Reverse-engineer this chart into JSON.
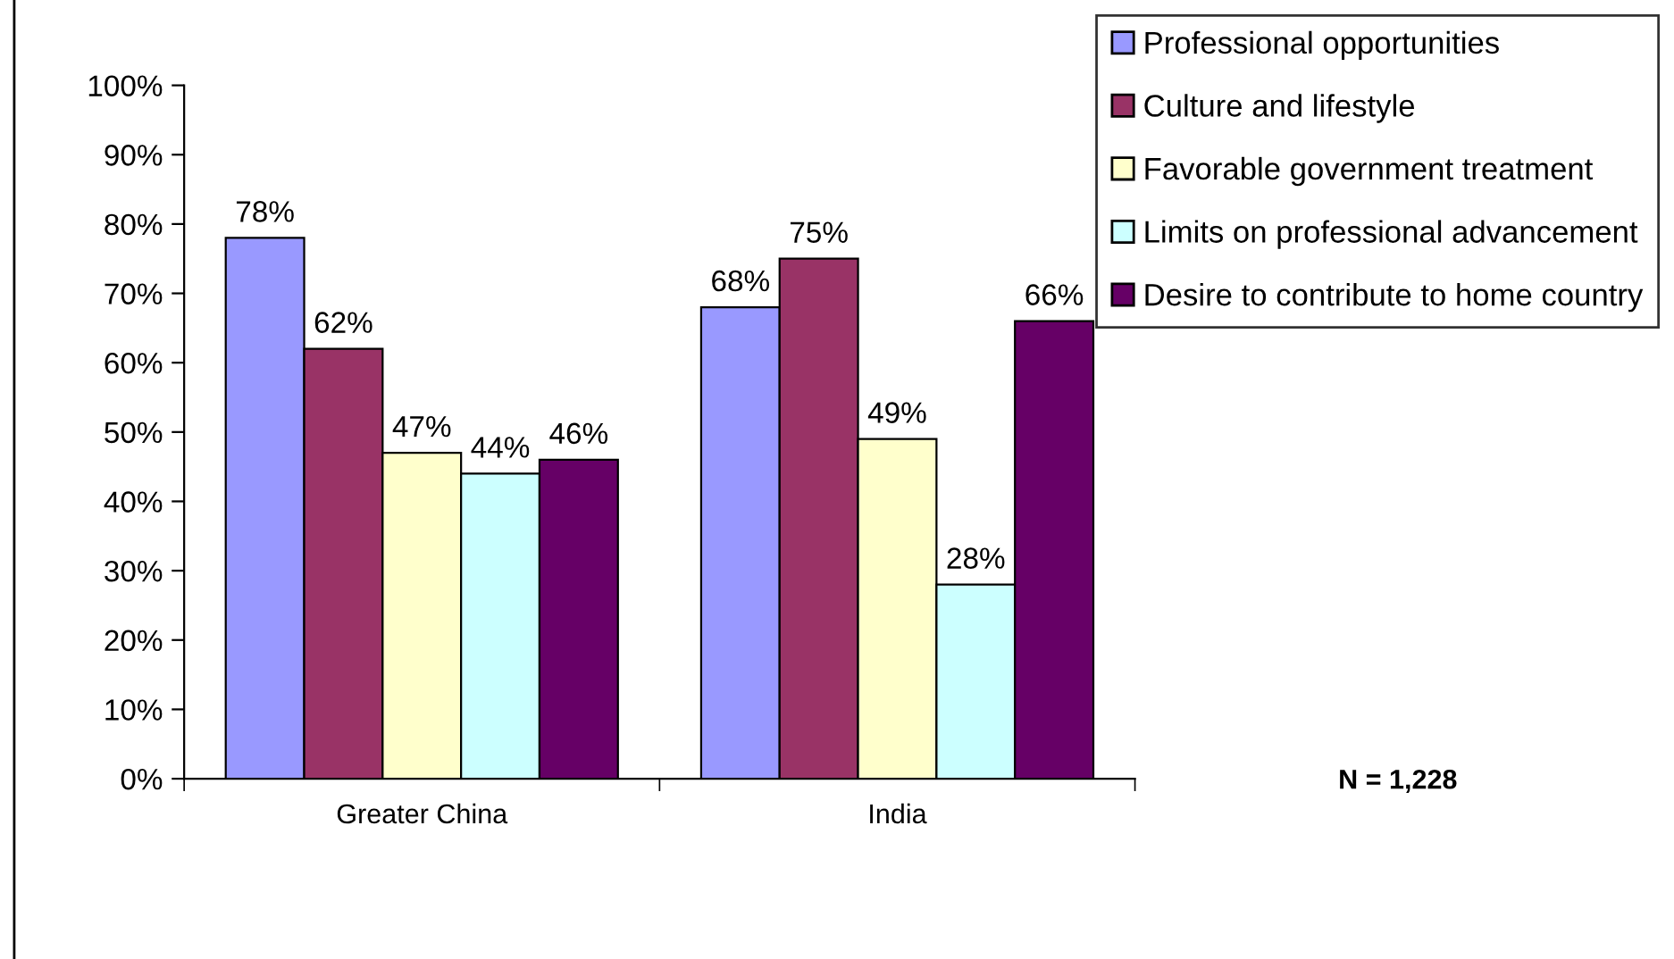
{
  "chart_data": {
    "type": "bar",
    "categories": [
      "Greater China",
      "India"
    ],
    "series": [
      {
        "name": "Professional opportunities",
        "color": "#9999ff",
        "values": [
          78,
          68
        ],
        "value_labels": [
          "78%",
          "68%"
        ]
      },
      {
        "name": "Culture and lifestyle",
        "color": "#993366",
        "values": [
          62,
          75
        ],
        "value_labels": [
          "62%",
          "75%"
        ]
      },
      {
        "name": "Favorable government treatment",
        "color": "#ffffcc",
        "values": [
          47,
          49
        ],
        "value_labels": [
          "47%",
          "49%"
        ]
      },
      {
        "name": "Limits on professional advancement",
        "color": "#ccffff",
        "values": [
          44,
          28
        ],
        "value_labels": [
          "44%",
          "28%"
        ]
      },
      {
        "name": "Desire to contribute to home country",
        "color": "#660066",
        "values": [
          46,
          66
        ],
        "value_labels": [
          "46%",
          "66%"
        ]
      }
    ],
    "ylim": [
      0,
      100
    ],
    "yticks": [
      {
        "value": 0,
        "label": "0%"
      },
      {
        "value": 10,
        "label": "10%"
      },
      {
        "value": 20,
        "label": "20%"
      },
      {
        "value": 30,
        "label": "30%"
      },
      {
        "value": 40,
        "label": "40%"
      },
      {
        "value": 50,
        "label": "50%"
      },
      {
        "value": 60,
        "label": "60%"
      },
      {
        "value": 70,
        "label": "70%"
      },
      {
        "value": 80,
        "label": "80%"
      },
      {
        "value": 90,
        "label": "90%"
      },
      {
        "value": 100,
        "label": "100%"
      }
    ],
    "grid": false,
    "legend": "top right",
    "annotations": [
      "N = 1,228"
    ]
  }
}
